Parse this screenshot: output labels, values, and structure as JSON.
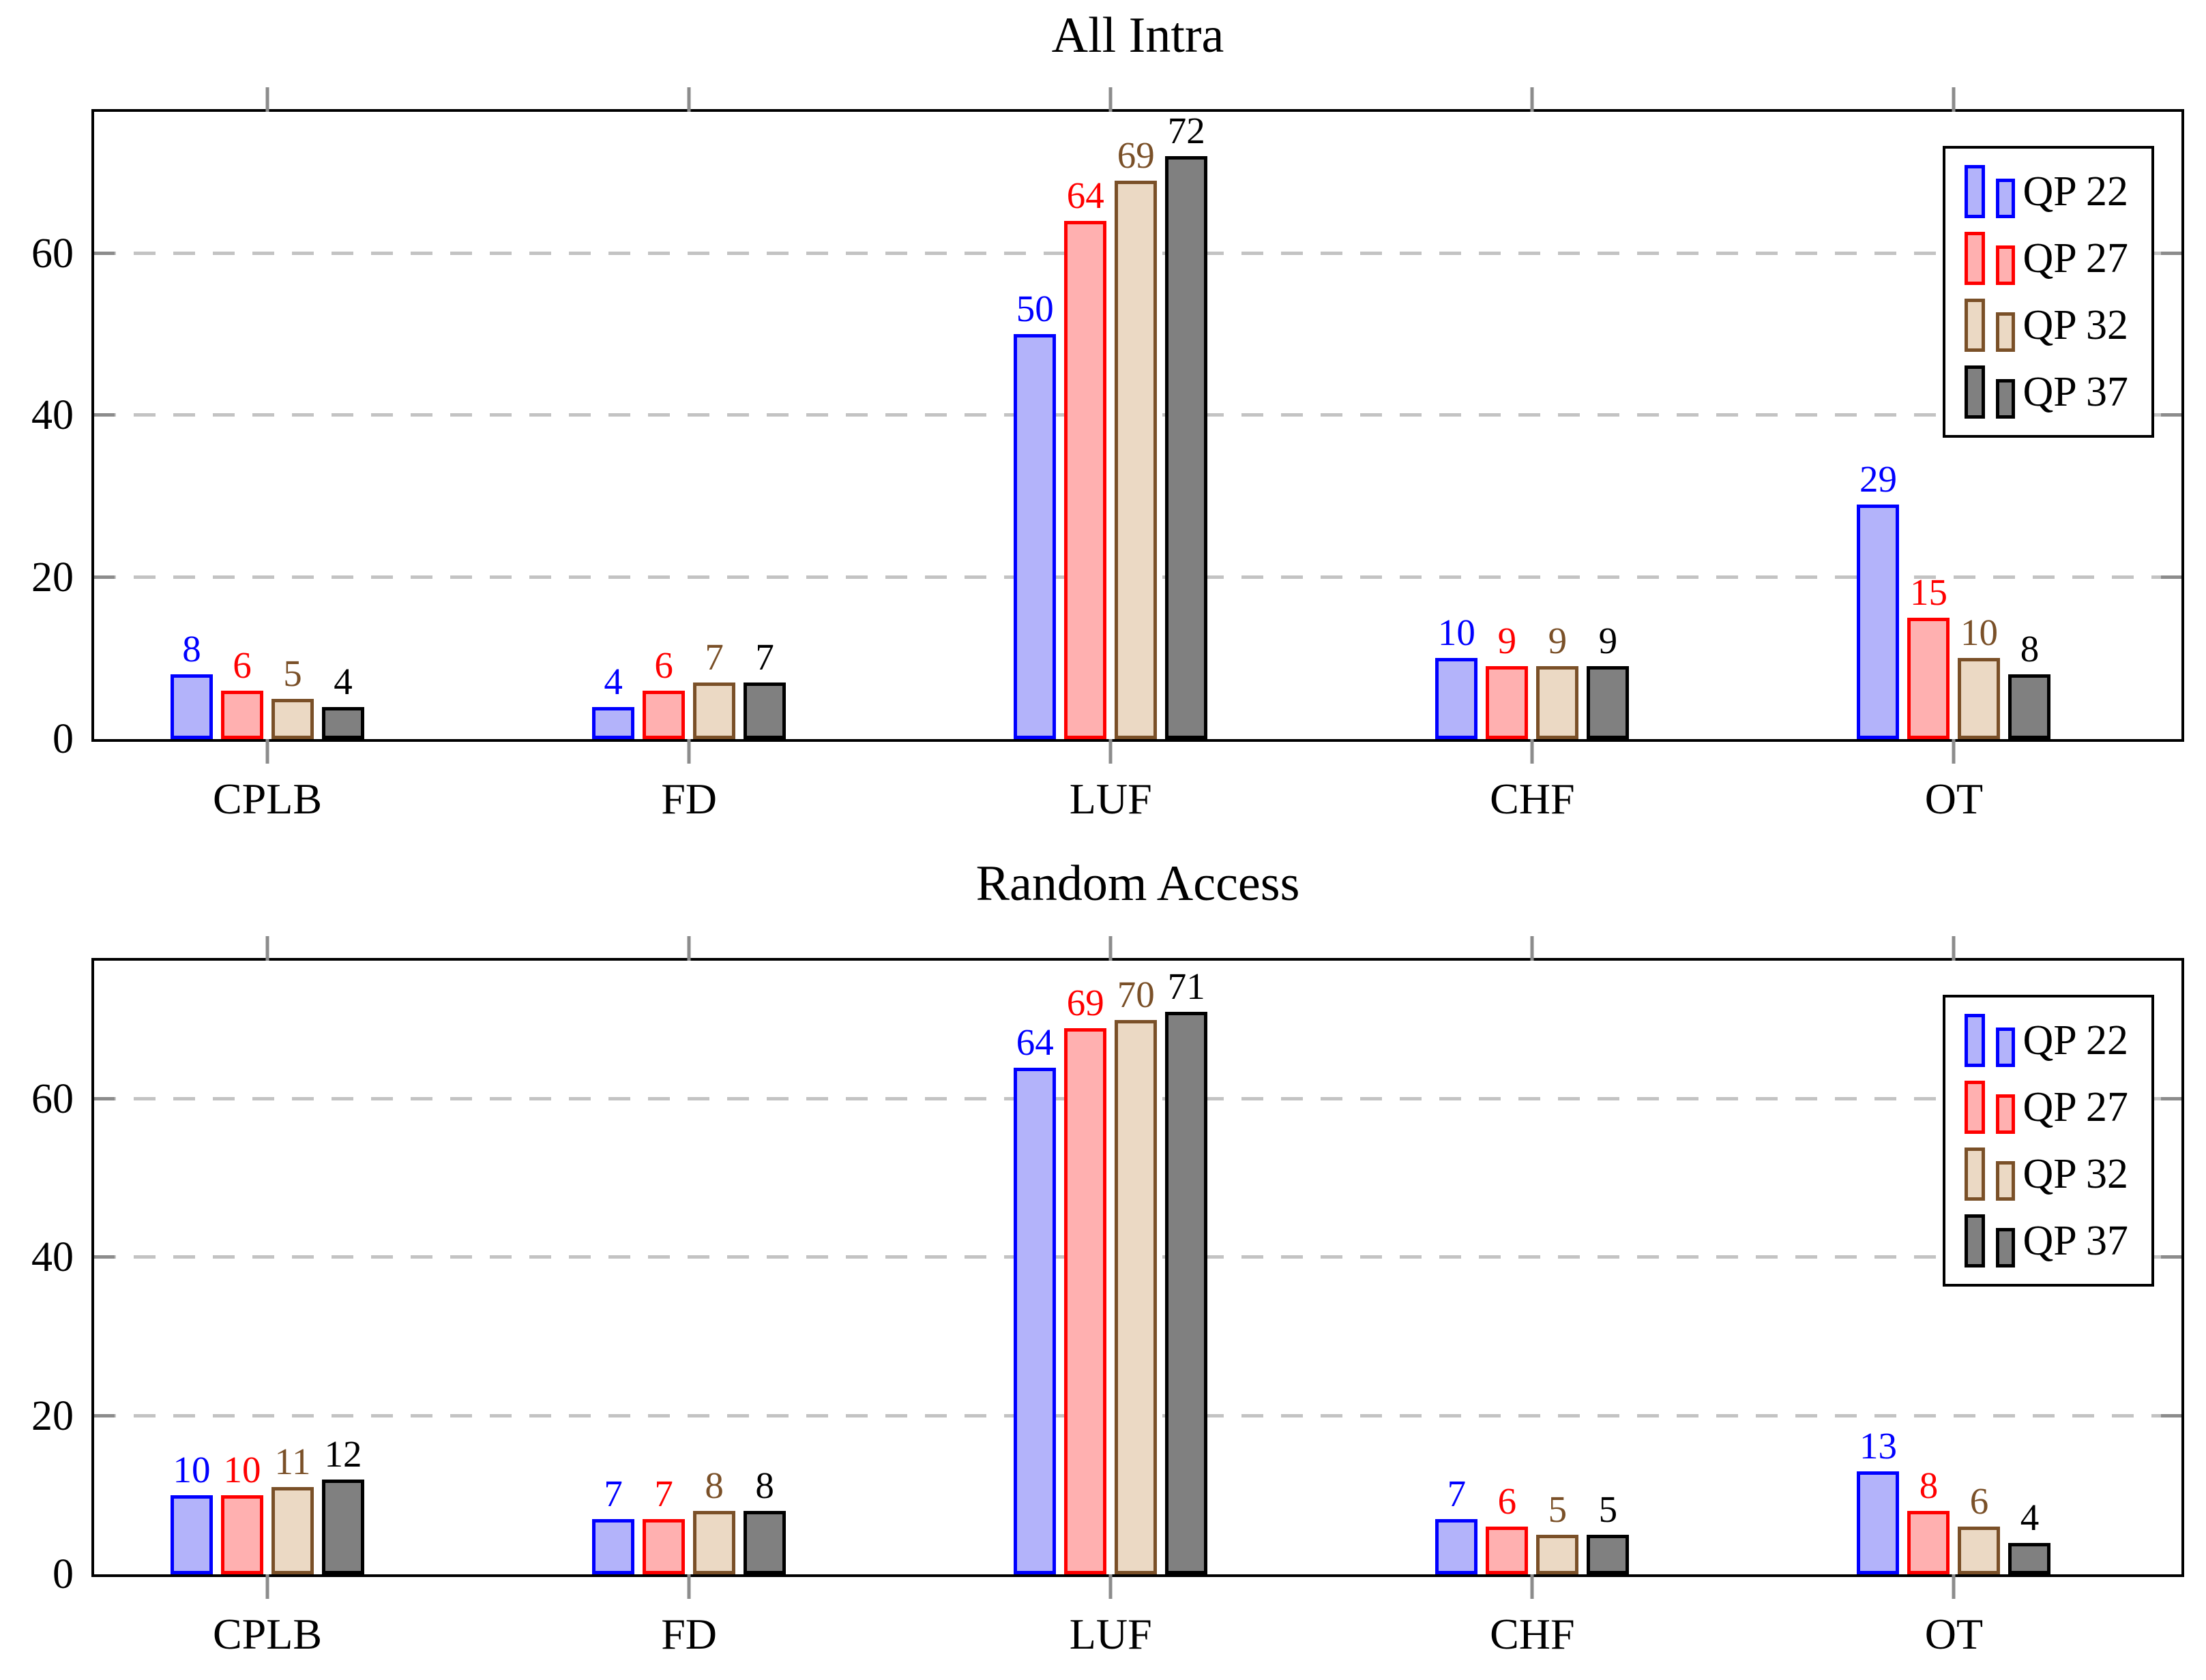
{
  "colors": {
    "background": "#ffffff",
    "axis": "#000000",
    "grid": "#c3c3c3",
    "tick": "#8c8c8c"
  },
  "chart_data": [
    {
      "type": "bar",
      "title": "All Intra",
      "categories": [
        "CPLB",
        "FD",
        "LUF",
        "CHF",
        "OT"
      ],
      "series": [
        {
          "name": "QP 22",
          "fill": "#b3b3fa",
          "border": "#0000ff",
          "values": [
            8,
            4,
            50,
            10,
            29
          ]
        },
        {
          "name": "QP 27",
          "fill": "#ffb0b0",
          "border": "#ff0000",
          "values": [
            6,
            6,
            64,
            9,
            15
          ]
        },
        {
          "name": "QP 32",
          "fill": "#ebd9c4",
          "border": "#7a5028",
          "values": [
            5,
            7,
            69,
            9,
            10
          ]
        },
        {
          "name": "QP 37",
          "fill": "#808080",
          "border": "#000000",
          "values": [
            4,
            7,
            72,
            9,
            8
          ]
        }
      ],
      "yticks": [
        0,
        20,
        40,
        60
      ],
      "ylim": [
        0,
        77.5
      ],
      "grid": "dashed-horizontal",
      "legend_position": "top-right"
    },
    {
      "type": "bar",
      "title": "Random Access",
      "categories": [
        "CPLB",
        "FD",
        "LUF",
        "CHF",
        "OT"
      ],
      "series": [
        {
          "name": "QP 22",
          "fill": "#b3b3fa",
          "border": "#0000ff",
          "values": [
            10,
            7,
            64,
            7,
            13
          ]
        },
        {
          "name": "QP 27",
          "fill": "#ffb0b0",
          "border": "#ff0000",
          "values": [
            10,
            7,
            69,
            6,
            8
          ]
        },
        {
          "name": "QP 32",
          "fill": "#ebd9c4",
          "border": "#7a5028",
          "values": [
            11,
            8,
            70,
            5,
            6
          ]
        },
        {
          "name": "QP 37",
          "fill": "#808080",
          "border": "#000000",
          "values": [
            12,
            8,
            71,
            5,
            4
          ]
        }
      ],
      "yticks": [
        0,
        20,
        40,
        60
      ],
      "ylim": [
        0,
        77.5
      ],
      "grid": "dashed-horizontal",
      "legend_position": "top-right"
    }
  ],
  "layout_hints": {
    "category_center_start_pct": 8.3,
    "category_center_step_pct": 20.2
  }
}
